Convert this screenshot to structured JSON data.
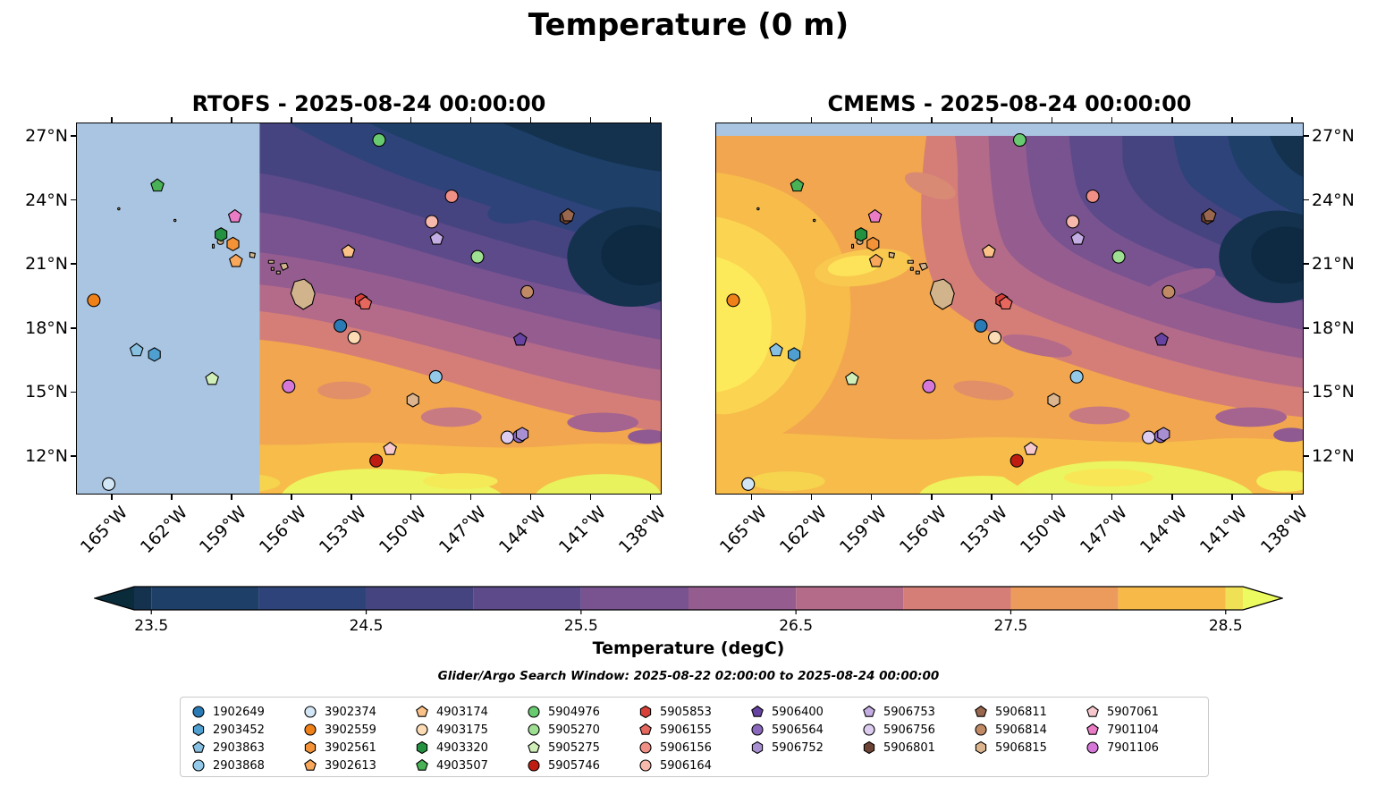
{
  "figure": {
    "title": "Temperature (0 m)",
    "subtitle": "Glider/Argo Search Window: 2025-08-22 02:00:00 to 2025-08-24 00:00:00"
  },
  "panels": [
    {
      "title": "RTOFS - 2025-08-24 00:00:00"
    },
    {
      "title": "CMEMS - 2025-08-24 00:00:00"
    }
  ],
  "colorbar": {
    "label": "Temperature (degC)",
    "vmin": 23.42,
    "vmax": 28.58,
    "ticks": [
      23.5,
      24.5,
      25.5,
      26.5,
      27.5,
      28.5
    ],
    "tick_labels": [
      "23.5",
      "24.5",
      "25.5",
      "26.5",
      "27.5",
      "28.5"
    ],
    "segment_levels": [
      23.42,
      23.5,
      24.0,
      24.5,
      25.0,
      25.5,
      26.0,
      26.5,
      27.0,
      27.5,
      28.0,
      28.5,
      28.58
    ],
    "segment_colors": [
      "#14324e",
      "#1d3f68",
      "#2f437b",
      "#464480",
      "#5d4a8a",
      "#785390",
      "#955c90",
      "#b36b89",
      "#d57e78",
      "#ec9b5c",
      "#f7ba49",
      "#f0e055"
    ],
    "under_color": "#0a2b3a",
    "over_color": "#ecfb5f"
  },
  "chart_data": {
    "type": "scatter",
    "subtype": "filled-contour temperature maps (2 model panels) with Argo/glider platform positions",
    "title": "Temperature (0 m)",
    "variable": "Temperature",
    "depth_m": 0,
    "units": "degC",
    "axes": {
      "lon_range": [
        -166.8,
        -137.43
      ],
      "lat_range": [
        10.2,
        27.63
      ],
      "lon_ticks": [
        -165,
        -162,
        -159,
        -156,
        -153,
        -150,
        -147,
        -144,
        -141,
        -138
      ],
      "lon_tick_labels": [
        "165°W",
        "162°W",
        "159°W",
        "156°W",
        "153°W",
        "150°W",
        "147°W",
        "144°W",
        "141°W",
        "138°W"
      ],
      "lat_ticks": [
        12,
        15,
        18,
        21,
        24,
        27
      ],
      "lat_tick_labels": [
        "12°N",
        "15°N",
        "18°N",
        "21°N",
        "24°N",
        "27°N"
      ]
    },
    "map_colors": {
      "land": "#d2b48c",
      "no_data_mask": "#aac5e2"
    },
    "legend_column_sizes": [
      4,
      4,
      4,
      4,
      4,
      3,
      3,
      3,
      3
    ],
    "platforms": [
      {
        "id": "1902649",
        "marker": "circle",
        "color": "#2a7ab5",
        "lon": -153.55,
        "lat": 18.1
      },
      {
        "id": "2903452",
        "marker": "hexagon",
        "color": "#4f9fd0",
        "lon": -162.9,
        "lat": 16.75
      },
      {
        "id": "2903863",
        "marker": "pentagon",
        "color": "#88c0e2",
        "lon": -163.8,
        "lat": 16.95
      },
      {
        "id": "2903868",
        "marker": "circle",
        "color": "#93c9e9",
        "lon": -148.75,
        "lat": 15.7
      },
      {
        "id": "3902374",
        "marker": "circle",
        "color": "#d3e6f5",
        "lon": -165.2,
        "lat": 10.65
      },
      {
        "id": "3902559",
        "marker": "circle",
        "color": "#f08118",
        "lon": -165.95,
        "lat": 19.3
      },
      {
        "id": "3902561",
        "marker": "hexagon",
        "color": "#f49238",
        "lon": -158.95,
        "lat": 21.95
      },
      {
        "id": "3902613",
        "marker": "pentagon",
        "color": "#f8a75b",
        "lon": -158.8,
        "lat": 21.15
      },
      {
        "id": "4903174",
        "marker": "pentagon",
        "color": "#fbc288",
        "lon": -153.15,
        "lat": 21.6
      },
      {
        "id": "4903175",
        "marker": "circle",
        "color": "#fddcb5",
        "lon": -152.85,
        "lat": 17.55
      },
      {
        "id": "4903320",
        "marker": "hexagon",
        "color": "#23913f",
        "lon": -159.55,
        "lat": 22.4
      },
      {
        "id": "4903507",
        "marker": "pentagon",
        "color": "#49b257",
        "lon": -162.75,
        "lat": 24.7
      },
      {
        "id": "5904976",
        "marker": "circle",
        "color": "#68cb70",
        "lon": -151.6,
        "lat": 26.85
      },
      {
        "id": "5905270",
        "marker": "circle",
        "color": "#9fdf92",
        "lon": -146.65,
        "lat": 21.35
      },
      {
        "id": "5905275",
        "marker": "pentagon",
        "color": "#cfeeb8",
        "lon": -160.0,
        "lat": 15.6
      },
      {
        "id": "5905746",
        "marker": "circle",
        "color": "#c01d12",
        "lon": -151.75,
        "lat": 11.75
      },
      {
        "id": "5905853",
        "marker": "hexagon",
        "color": "#d84038",
        "lon": -152.5,
        "lat": 19.3
      },
      {
        "id": "5906155",
        "marker": "pentagon",
        "color": "#e5675e",
        "lon": -152.3,
        "lat": 19.15
      },
      {
        "id": "5906156",
        "marker": "circle",
        "color": "#ef8f85",
        "lon": -147.95,
        "lat": 24.2
      },
      {
        "id": "5906164",
        "marker": "circle",
        "color": "#f8b9ad",
        "lon": -148.95,
        "lat": 23.0
      },
      {
        "id": "5906400",
        "marker": "pentagon",
        "color": "#6743a1",
        "lon": -144.5,
        "lat": 17.45
      },
      {
        "id": "5906564",
        "marker": "circle",
        "color": "#8a68bd",
        "lon": -144.55,
        "lat": 12.9
      },
      {
        "id": "5906752",
        "marker": "hexagon",
        "color": "#a78fd2",
        "lon": -144.4,
        "lat": 13.0
      },
      {
        "id": "5906753",
        "marker": "pentagon",
        "color": "#c4ade2",
        "lon": -148.7,
        "lat": 22.2
      },
      {
        "id": "5906756",
        "marker": "circle",
        "color": "#dcccf0",
        "lon": -145.15,
        "lat": 12.85
      },
      {
        "id": "5906801",
        "marker": "hexagon",
        "color": "#6d4335",
        "lon": -142.2,
        "lat": 23.2
      },
      {
        "id": "5906811",
        "marker": "pentagon",
        "color": "#99674d",
        "lon": -142.1,
        "lat": 23.3
      },
      {
        "id": "5906814",
        "marker": "circle",
        "color": "#c08a65",
        "lon": -144.15,
        "lat": 19.7
      },
      {
        "id": "5906815",
        "marker": "hexagon",
        "color": "#dcb58f",
        "lon": -149.9,
        "lat": 14.6
      },
      {
        "id": "5907061",
        "marker": "pentagon",
        "color": "#f7c8cd",
        "lon": -151.05,
        "lat": 12.3
      },
      {
        "id": "7901104",
        "marker": "pentagon",
        "color": "#ea7cc6",
        "lon": -158.85,
        "lat": 23.25
      },
      {
        "id": "7901106",
        "marker": "circle",
        "color": "#d678da",
        "lon": -156.15,
        "lat": 15.25
      }
    ]
  }
}
